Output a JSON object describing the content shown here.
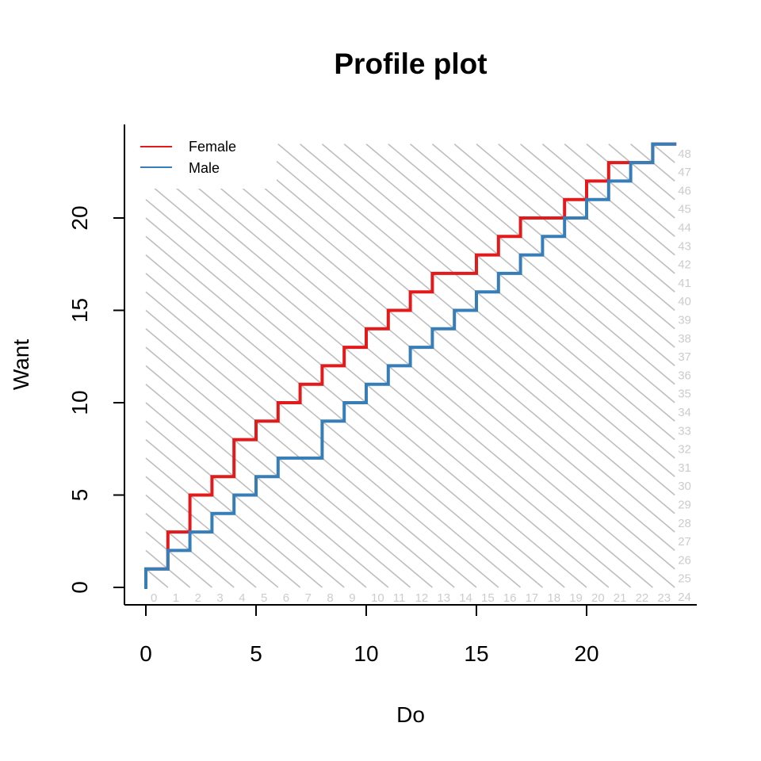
{
  "chart_data": {
    "type": "line",
    "title": "Profile plot",
    "xlabel": "Do",
    "ylabel": "Want",
    "xlim": [
      -1,
      25
    ],
    "ylim": [
      -0.9,
      24.6
    ],
    "xticks": [
      "0",
      "5",
      "10",
      "15",
      "20"
    ],
    "yticks": [
      "0",
      "5",
      "10",
      "15",
      "20"
    ],
    "grid": false,
    "legend_position": "top-left",
    "diagonal_reference_lines": {
      "color": "#bebebe",
      "label_color": "#cccccc",
      "sums": [
        0,
        1,
        2,
        3,
        4,
        5,
        6,
        7,
        8,
        9,
        10,
        11,
        12,
        13,
        14,
        15,
        16,
        17,
        18,
        19,
        20,
        21,
        22,
        23,
        24,
        25,
        26,
        27,
        28,
        29,
        30,
        31,
        32,
        33,
        34,
        35,
        36,
        37,
        38,
        39,
        40,
        41,
        42,
        43,
        44,
        45,
        46,
        47,
        48
      ],
      "labels": [
        "0",
        "1",
        "2",
        "3",
        "4",
        "5",
        "6",
        "7",
        "8",
        "9",
        "10",
        "11",
        "12",
        "13",
        "14",
        "15",
        "16",
        "17",
        "18",
        "19",
        "20",
        "21",
        "22",
        "23",
        "24",
        "25",
        "26",
        "27",
        "28",
        "29",
        "30",
        "31",
        "32",
        "33",
        "34",
        "35",
        "36",
        "37",
        "38",
        "39",
        "40",
        "41",
        "42",
        "43",
        "44",
        "45",
        "46",
        "47",
        "48"
      ]
    },
    "series": [
      {
        "name": "Female",
        "color": "#e31a1c",
        "points": [
          [
            0,
            0
          ],
          [
            0,
            1
          ],
          [
            1,
            1
          ],
          [
            1,
            3
          ],
          [
            2,
            3
          ],
          [
            2,
            5
          ],
          [
            3,
            5
          ],
          [
            3,
            6
          ],
          [
            4,
            6
          ],
          [
            4,
            8
          ],
          [
            5,
            8
          ],
          [
            5,
            9
          ],
          [
            6,
            9
          ],
          [
            6,
            10
          ],
          [
            7,
            10
          ],
          [
            7,
            11
          ],
          [
            8,
            11
          ],
          [
            8,
            12
          ],
          [
            9,
            12
          ],
          [
            9,
            13
          ],
          [
            10,
            13
          ],
          [
            10,
            14
          ],
          [
            11,
            14
          ],
          [
            11,
            15
          ],
          [
            12,
            15
          ],
          [
            12,
            16
          ],
          [
            13,
            16
          ],
          [
            13,
            17
          ],
          [
            15,
            17
          ],
          [
            15,
            18
          ],
          [
            16,
            18
          ],
          [
            16,
            19
          ],
          [
            17,
            19
          ],
          [
            17,
            20
          ],
          [
            19,
            20
          ],
          [
            19,
            21
          ],
          [
            20,
            21
          ],
          [
            20,
            22
          ],
          [
            21,
            22
          ],
          [
            21,
            23
          ],
          [
            23,
            23
          ],
          [
            23,
            24
          ],
          [
            24,
            24
          ]
        ]
      },
      {
        "name": "Male",
        "color": "#377eb8",
        "points": [
          [
            0,
            0
          ],
          [
            0,
            1
          ],
          [
            1,
            1
          ],
          [
            1,
            2
          ],
          [
            2,
            2
          ],
          [
            2,
            3
          ],
          [
            3,
            3
          ],
          [
            3,
            4
          ],
          [
            4,
            4
          ],
          [
            4,
            5
          ],
          [
            5,
            5
          ],
          [
            5,
            6
          ],
          [
            6,
            6
          ],
          [
            6,
            7
          ],
          [
            8,
            7
          ],
          [
            8,
            9
          ],
          [
            9,
            9
          ],
          [
            9,
            10
          ],
          [
            10,
            10
          ],
          [
            10,
            11
          ],
          [
            11,
            11
          ],
          [
            11,
            12
          ],
          [
            12,
            12
          ],
          [
            12,
            13
          ],
          [
            13,
            13
          ],
          [
            13,
            14
          ],
          [
            14,
            14
          ],
          [
            14,
            15
          ],
          [
            15,
            15
          ],
          [
            15,
            16
          ],
          [
            16,
            16
          ],
          [
            16,
            17
          ],
          [
            17,
            17
          ],
          [
            17,
            18
          ],
          [
            18,
            18
          ],
          [
            18,
            19
          ],
          [
            19,
            19
          ],
          [
            19,
            20
          ],
          [
            20,
            20
          ],
          [
            20,
            21
          ],
          [
            21,
            21
          ],
          [
            21,
            22
          ],
          [
            22,
            22
          ],
          [
            22,
            23
          ],
          [
            23,
            23
          ],
          [
            23,
            24
          ],
          [
            24,
            24
          ]
        ]
      }
    ]
  }
}
